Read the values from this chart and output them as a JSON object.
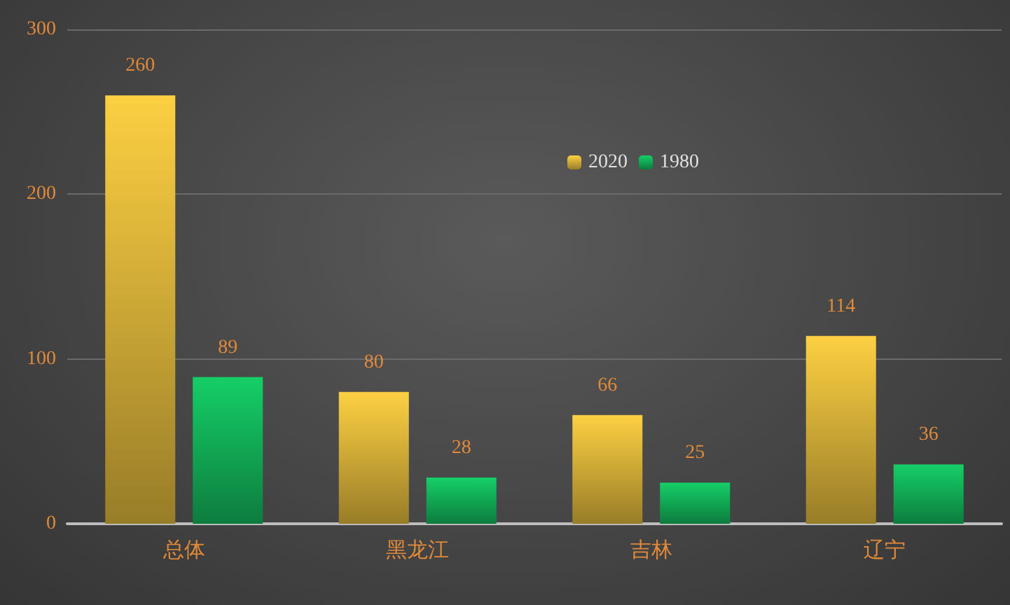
{
  "chart_data": {
    "type": "bar",
    "categories": [
      "总体",
      "黑龙江",
      "吉林",
      "辽宁"
    ],
    "series": [
      {
        "name": "2020",
        "color": "#fdd042",
        "values": [
          260,
          80,
          66,
          114
        ]
      },
      {
        "name": "1980",
        "color": "#15cf67",
        "values": [
          89,
          28,
          25,
          36
        ]
      }
    ],
    "ylim": [
      0,
      300
    ],
    "yticks": [
      0,
      100,
      200,
      300
    ],
    "grid": "y",
    "legend": "top",
    "data_labels": true
  }
}
